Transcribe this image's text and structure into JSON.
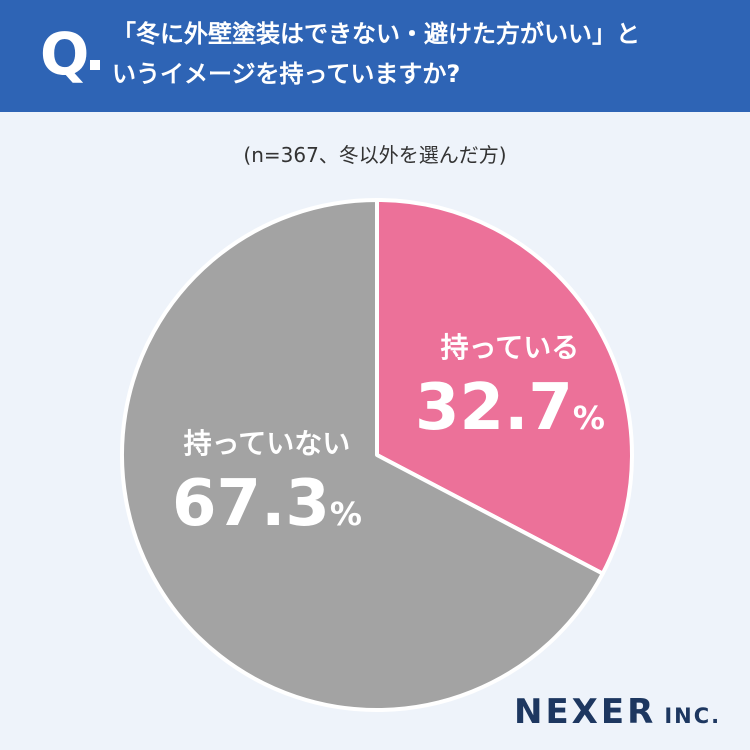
{
  "header": {
    "q_mark": "Q",
    "question_line1": "「冬に外壁塗装はできない・避けた方がいい」と",
    "question_line2": "いうイメージを持っていますか?"
  },
  "sample_note": "(n=367、冬以外を選んだ方)",
  "colors": {
    "header_bg": "#2e64b5",
    "background": "#eef3fa",
    "slice_have": "#ec7199",
    "slice_not": "#a3a3a3"
  },
  "chart_data": {
    "type": "pie",
    "title": "",
    "unit": "%",
    "slices": [
      {
        "label": "持っている",
        "value": 32.7,
        "value_text": "32.7",
        "color": "#ec7199"
      },
      {
        "label": "持っていない",
        "value": 67.3,
        "value_text": "67.3",
        "color": "#a3a3a3"
      }
    ],
    "start_angle": "12 o'clock",
    "direction": "clockwise"
  },
  "logo": {
    "name": "NEXER",
    "suffix": "INC."
  }
}
